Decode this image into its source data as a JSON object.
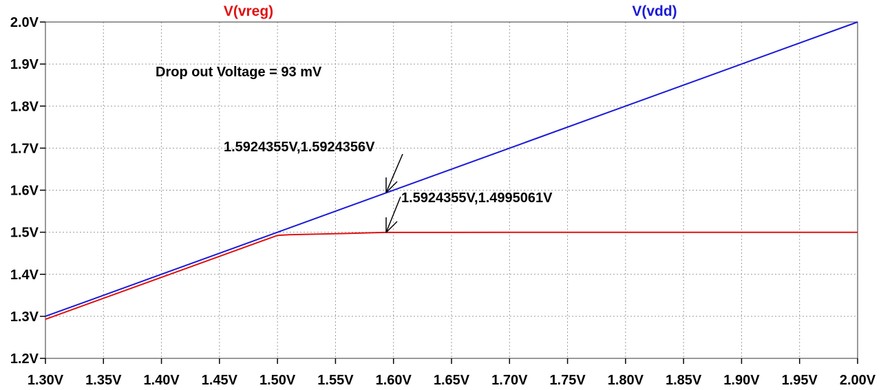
{
  "chart_data": {
    "type": "line",
    "title": "",
    "xlabel": "",
    "ylabel": "",
    "xlim": [
      1.3,
      2.0
    ],
    "ylim": [
      1.2,
      2.0
    ],
    "grid": true,
    "x_ticks": [
      "1.30V",
      "1.35V",
      "1.40V",
      "1.45V",
      "1.50V",
      "1.55V",
      "1.60V",
      "1.65V",
      "1.70V",
      "1.75V",
      "1.80V",
      "1.85V",
      "1.90V",
      "1.95V",
      "2.00V"
    ],
    "y_ticks": [
      "2.0V",
      "1.9V",
      "1.8V",
      "1.7V",
      "1.6V",
      "1.5V",
      "1.4V",
      "1.3V",
      "1.2V"
    ],
    "x_tick_values": [
      1.3,
      1.35,
      1.4,
      1.45,
      1.5,
      1.55,
      1.6,
      1.65,
      1.7,
      1.75,
      1.8,
      1.85,
      1.9,
      1.95,
      2.0
    ],
    "y_tick_values": [
      2.0,
      1.9,
      1.8,
      1.7,
      1.6,
      1.5,
      1.4,
      1.3,
      1.2
    ],
    "series": [
      {
        "name": "V(vreg)",
        "color": "#e01010",
        "x": [
          1.3,
          1.5,
          1.51,
          1.55,
          1.5924355,
          1.7,
          2.0
        ],
        "y": [
          1.293,
          1.4925,
          1.494,
          1.4965,
          1.4995061,
          1.4998,
          1.4999
        ]
      },
      {
        "name": "V(vdd)",
        "color": "#1a1ad8",
        "x": [
          1.3,
          2.0
        ],
        "y": [
          1.3,
          2.0
        ]
      }
    ],
    "annotations": [
      {
        "text": "Drop out Voltage = 93 mV"
      },
      {
        "text": "1.5924355V,1.5924356V",
        "x": 1.5924355,
        "y": 1.5924356
      },
      {
        "text": "1.5924355V,1.4995061V",
        "x": 1.5924355,
        "y": 1.4995061
      }
    ]
  }
}
